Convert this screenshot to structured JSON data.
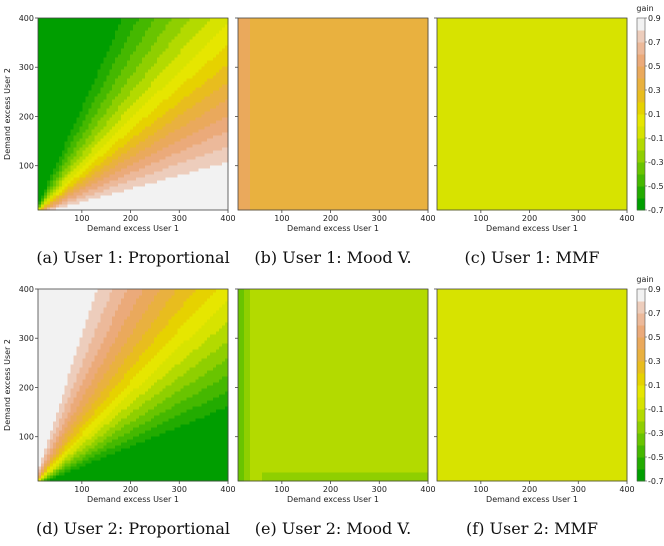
{
  "chart_data": {
    "type": "heatmap",
    "description_units": "x = demand excess of user 1, y = demand excess of user 2, z = gain",
    "xlim": [
      10,
      400
    ],
    "ylim": [
      10,
      400
    ],
    "x_ticks": [
      "100",
      "200",
      "300",
      "400"
    ],
    "y_ticks": [
      "100",
      "200",
      "300",
      "400"
    ],
    "xlabel": "Demand excess User 1",
    "ylabel": "Demand excess User 2",
    "colorbar": {
      "title": "gain",
      "ticks": [
        "0.9",
        "0.7",
        "0.5",
        "0.3",
        "0.1",
        "-0.1",
        "-0.3",
        "-0.5",
        "-0.7"
      ],
      "range": [
        -0.7,
        0.9
      ],
      "colors": [
        "#009e00",
        "#22ab00",
        "#45b800",
        "#69c400",
        "#8fcf00",
        "#b3da00",
        "#d7e300",
        "#e6e600",
        "#e6d200",
        "#e8bd1e",
        "#e9b13f",
        "#eaa95c",
        "#ebaa7a",
        "#ecb99a",
        "#edcdbc",
        "#f2f2f2"
      ]
    },
    "panels": [
      {
        "id": "a",
        "caption": "(a) User 1: Proportional",
        "user": 1,
        "model": "proportional",
        "show_ylabel": true
      },
      {
        "id": "b",
        "caption": "(b) User 1: Mood V.",
        "user": 1,
        "model": "mood",
        "show_ylabel": false
      },
      {
        "id": "c",
        "caption": "(c) User 1: MMF",
        "user": 1,
        "model": "mmf",
        "show_ylabel": false
      },
      {
        "id": "d",
        "caption": "(d) User 2: Proportional",
        "user": 2,
        "model": "proportional",
        "show_ylabel": true
      },
      {
        "id": "e",
        "caption": "(e) User 2: Mood V.",
        "user": 2,
        "model": "mood",
        "show_ylabel": false
      },
      {
        "id": "f",
        "caption": "(f) User 2: MMF",
        "user": 2,
        "model": "mmf",
        "show_ylabel": false
      }
    ]
  }
}
